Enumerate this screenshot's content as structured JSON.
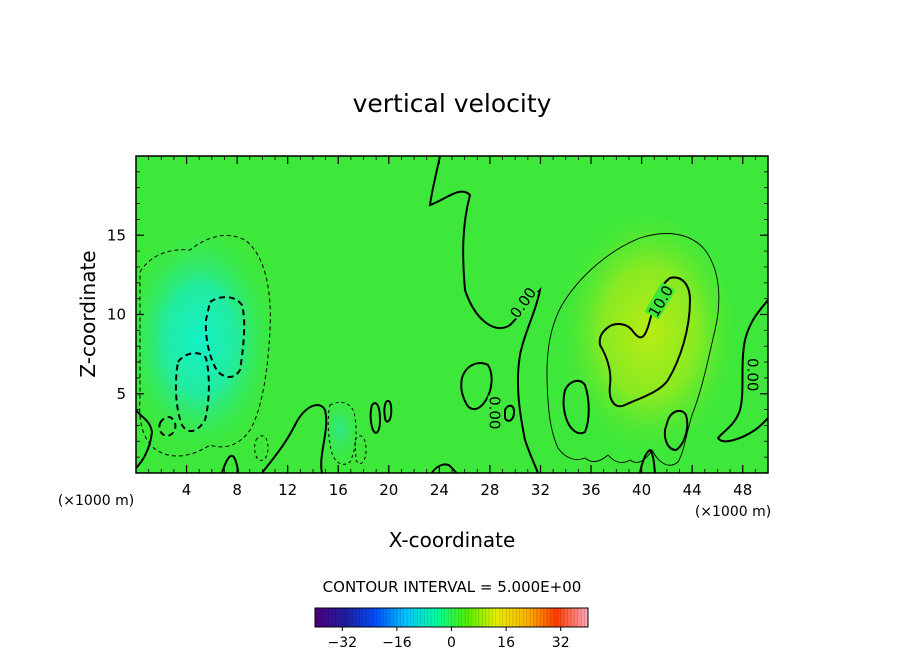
{
  "chart_data": {
    "type": "heatmap",
    "title": "vertical velocity",
    "xlabel": "X-coordinate",
    "ylabel": "Z-coordinate",
    "x_unit_left": "(×1000 m)",
    "x_unit_right": "(×1000 m)",
    "xlim": [
      0,
      50
    ],
    "ylim": [
      0,
      20
    ],
    "xticks": [
      4,
      8,
      12,
      16,
      20,
      24,
      28,
      32,
      36,
      40,
      44,
      48
    ],
    "yticks": [
      5,
      10,
      15
    ],
    "contour_interval_text": "CONTOUR INTERVAL = 5.000E+00",
    "colorbar": {
      "range": [
        -40,
        40
      ],
      "ticks": [
        -32,
        -16,
        0,
        16,
        32
      ],
      "tick_labels": [
        "−32",
        "−16",
        "0",
        "16",
        "32"
      ],
      "colors": [
        "#4b0082",
        "#1e1ea0",
        "#0050ff",
        "#00c8ff",
        "#00ffa0",
        "#50f000",
        "#e6f000",
        "#ffb400",
        "#ff3c00",
        "#ffa0b4"
      ]
    },
    "contour_labels": [
      {
        "text": "0.00",
        "x": 30.7,
        "y": 10.7,
        "angle": -55
      },
      {
        "text": "10.0",
        "x": 41.6,
        "y": 10.8,
        "angle": -60
      },
      {
        "text": "0.00",
        "x": 48.7,
        "y": 6.2,
        "angle": 90
      },
      {
        "text": "0.00",
        "x": 28.3,
        "y": 3.8,
        "angle": 90
      }
    ],
    "features": [
      {
        "name": "downdraft",
        "center": [
          6.8,
          9.0
        ],
        "value": -12
      },
      {
        "name": "downdraft",
        "center": [
          4.3,
          6.0
        ],
        "value": -12
      },
      {
        "name": "updraft",
        "center": [
          41,
          8.0
        ],
        "value": 12
      }
    ],
    "background_color": "#3ee83a",
    "grid": false
  }
}
